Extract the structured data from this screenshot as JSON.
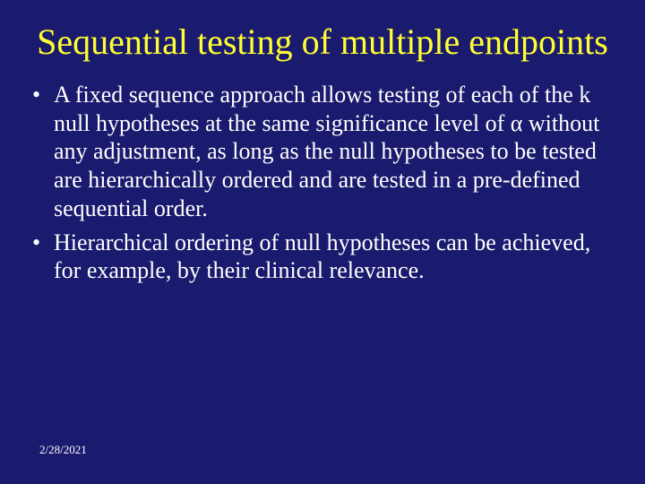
{
  "background_color": "#1a1a6e",
  "title_color": "#ffff33",
  "body_color": "#ffffff",
  "title_fontsize": 40,
  "body_fontsize": 26,
  "date_fontsize": 13,
  "font_family": "Times New Roman",
  "title": "Sequential testing of multiple endpoints",
  "bullets": [
    "A fixed sequence approach allows testing of each of the k null hypotheses at the same significance level of α without any adjustment, as long as the null hypotheses to be tested are hierarchically ordered and are tested in a pre-defined sequential order.",
    "Hierarchical ordering of null hypotheses can be achieved, for example, by their clinical relevance."
  ],
  "bullet_char": "•",
  "date": "2/28/2021"
}
